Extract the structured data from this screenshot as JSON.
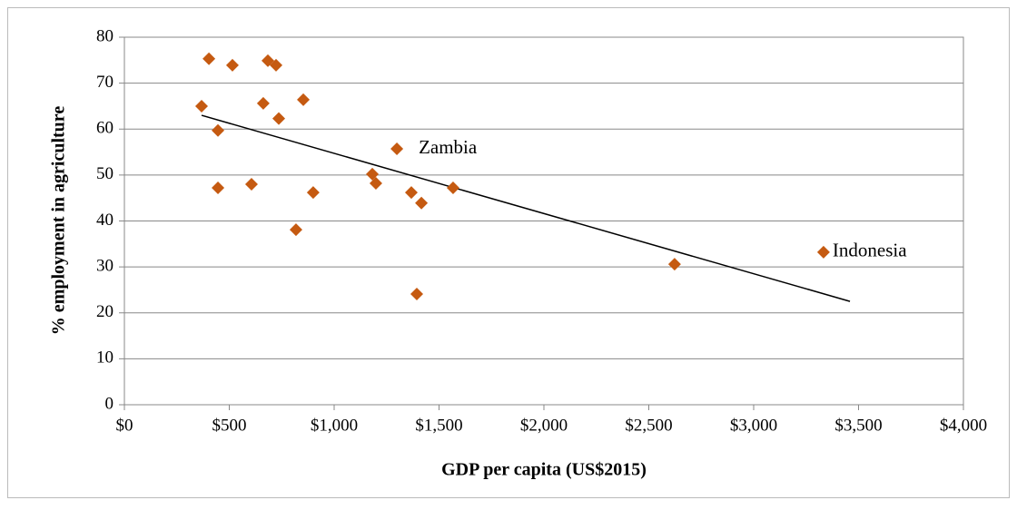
{
  "chart_data": {
    "type": "scatter",
    "xlabel": "GDP per capita (US$2015)",
    "ylabel": "% employment in agriculture",
    "xlim": [
      0,
      4000
    ],
    "ylim": [
      0,
      80
    ],
    "xticks": [
      {
        "value": 0,
        "label": "$0"
      },
      {
        "value": 500,
        "label": "$500"
      },
      {
        "value": 1000,
        "label": "$1,000"
      },
      {
        "value": 1500,
        "label": "$1,500"
      },
      {
        "value": 2000,
        "label": "$2,000"
      },
      {
        "value": 2500,
        "label": "$2,500"
      },
      {
        "value": 3000,
        "label": "$3,000"
      },
      {
        "value": 3500,
        "label": "$3,500"
      },
      {
        "value": 4000,
        "label": "$4,000"
      }
    ],
    "yticks": [
      0,
      10,
      20,
      30,
      40,
      50,
      60,
      70,
      80
    ],
    "grid": true,
    "color": "#c55a11",
    "x": [
      403,
      515,
      684,
      723,
      368,
      662,
      853,
      736,
      446,
      446,
      606,
      900,
      818,
      1299,
      1182,
      1199,
      1368,
      1416,
      1567,
      1394,
      2623,
      3333
    ],
    "values": [
      75.3,
      73.9,
      74.9,
      73.9,
      65.0,
      65.6,
      66.4,
      62.3,
      59.7,
      47.2,
      48.0,
      46.2,
      38.1,
      55.7,
      50.2,
      48.2,
      46.2,
      43.9,
      47.2,
      24.1,
      30.6,
      33.2
    ],
    "trendline": {
      "x": [
        368,
        3459
      ],
      "y": [
        63.0,
        22.5
      ],
      "color": "#000000"
    },
    "annotations": [
      "Zambia",
      "Indonesia"
    ]
  }
}
